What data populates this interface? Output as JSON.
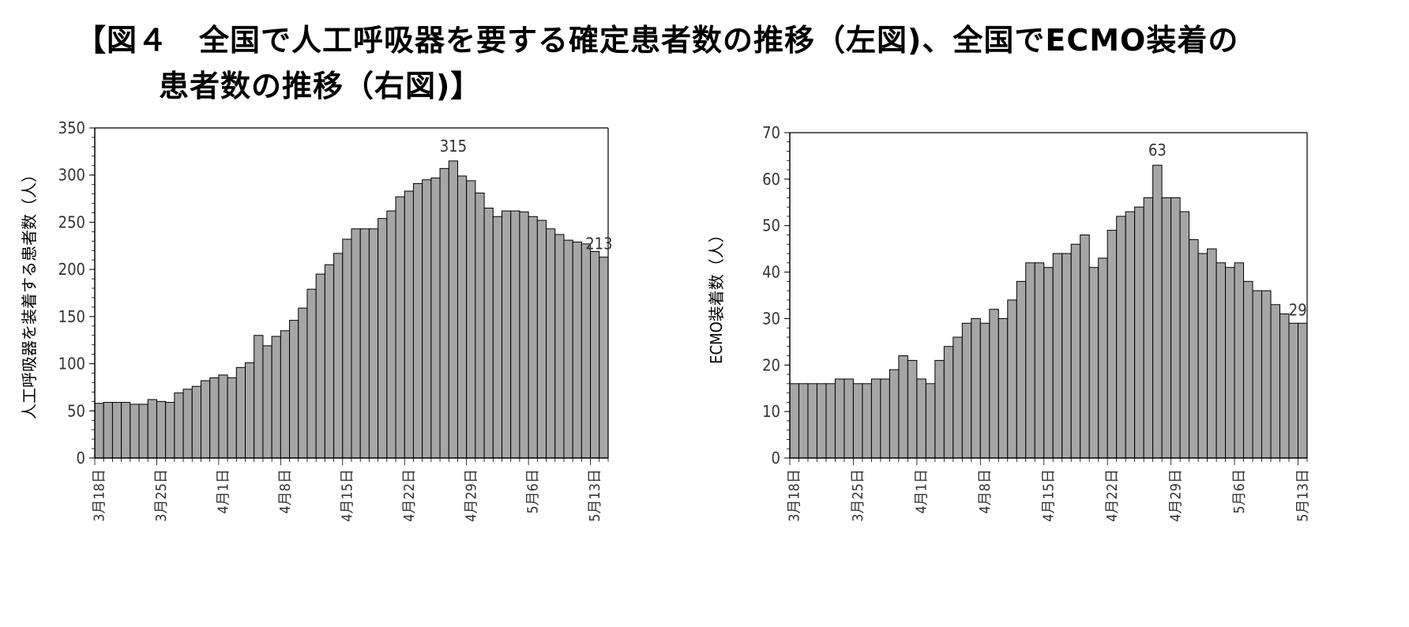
{
  "heading": {
    "line1": "【図４　全国で人工呼吸器を要する確定患者数の推移（左図)、全国でECMO装着の",
    "line2": "患者数の推移（右図)】"
  },
  "bar_color": "#a6a6a6",
  "chart_data": [
    {
      "type": "bar",
      "title": "",
      "xlabel": "",
      "ylabel": "人工呼吸器を装着する患者数（人）",
      "ylim": [
        0,
        350
      ],
      "yticks": [
        0,
        50,
        100,
        150,
        200,
        250,
        300,
        350
      ],
      "grid": false,
      "x_tick_labels": [
        "3月18日",
        "3月25日",
        "4月1日",
        "4月8日",
        "4月15日",
        "4月22日",
        "4月29日",
        "5月6日",
        "5月13日"
      ],
      "annotations": [
        {
          "label": "315",
          "value": 315
        },
        {
          "label": "213",
          "value": 213
        }
      ],
      "values": [
        58,
        59,
        59,
        59,
        57,
        57,
        62,
        60,
        59,
        69,
        73,
        76,
        82,
        85,
        88,
        85,
        96,
        101,
        130,
        119,
        129,
        135,
        146,
        159,
        179,
        195,
        205,
        217,
        232,
        243,
        243,
        243,
        254,
        262,
        277,
        283,
        291,
        295,
        297,
        307,
        315,
        299,
        294,
        281,
        265,
        256,
        262,
        262,
        261,
        256,
        252,
        243,
        237,
        231,
        229,
        227,
        219,
        213
      ]
    },
    {
      "type": "bar",
      "title": "",
      "xlabel": "",
      "ylabel": "ECMO装着数（人）",
      "ylim": [
        0,
        70
      ],
      "yticks": [
        0,
        10,
        20,
        30,
        40,
        50,
        60,
        70
      ],
      "grid": false,
      "x_tick_labels": [
        "3月18日",
        "3月25日",
        "4月1日",
        "4月8日",
        "4月15日",
        "4月22日",
        "4月29日",
        "5月6日",
        "5月13日"
      ],
      "annotations": [
        {
          "label": "63",
          "value": 63
        },
        {
          "label": "29",
          "value": 29
        }
      ],
      "values": [
        16,
        16,
        16,
        16,
        16,
        17,
        17,
        16,
        16,
        17,
        17,
        19,
        22,
        21,
        17,
        16,
        21,
        24,
        26,
        29,
        30,
        29,
        32,
        30,
        34,
        38,
        42,
        42,
        41,
        44,
        44,
        46,
        48,
        41,
        43,
        49,
        52,
        53,
        54,
        56,
        63,
        56,
        56,
        53,
        47,
        44,
        45,
        42,
        41,
        42,
        38,
        36,
        36,
        33,
        31,
        29,
        29
      ]
    }
  ]
}
